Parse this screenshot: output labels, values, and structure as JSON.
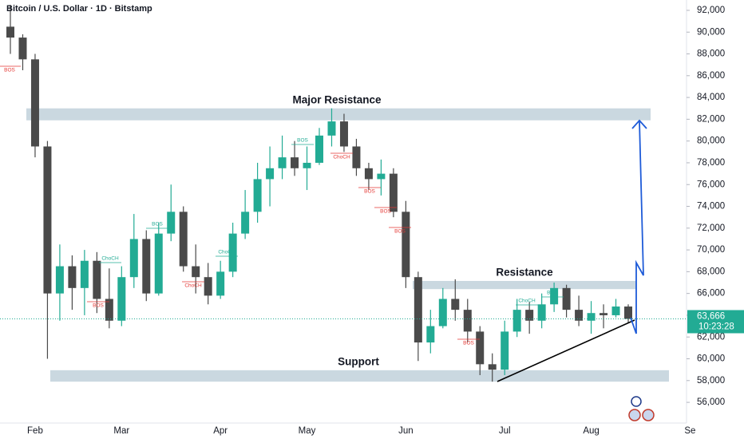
{
  "chart_data": {
    "type": "candlestick",
    "title": "Bitcoin / U.S. Dollar · 1D · Bitstamp",
    "categories": [
      null,
      null,
      "Feb",
      null,
      null,
      null,
      null,
      null,
      null,
      "Mar",
      null,
      null,
      null,
      null,
      null,
      null,
      null,
      "Apr",
      null,
      null,
      null,
      null,
      null,
      null,
      "May",
      null,
      null,
      null,
      null,
      null,
      null,
      null,
      "Jun",
      null,
      null,
      null,
      null,
      null,
      null,
      null,
      "Jul",
      null,
      null,
      null,
      null,
      null,
      null,
      "Aug",
      null,
      null,
      null,
      null,
      null,
      null,
      null,
      "Se"
    ],
    "open": [
      90500,
      89500,
      87500,
      79500,
      66000,
      68500,
      66500,
      69000,
      65500,
      63500,
      67500,
      71000,
      66000,
      71500,
      73500,
      68500,
      67500,
      65800,
      68000,
      71500,
      73500,
      76500,
      77500,
      78500,
      77500,
      78000,
      80500,
      81800,
      79500,
      77500,
      76500,
      77000,
      73500,
      67500,
      61500,
      63000,
      65500,
      64500,
      62500,
      59500,
      59000,
      62500,
      64500,
      63500,
      65000,
      66500,
      64500,
      63500,
      64200,
      64000,
      64800,
      null,
      null,
      null,
      null,
      null
    ],
    "high": [
      92500,
      89800,
      88000,
      80000,
      70500,
      69500,
      70000,
      69800,
      68300,
      68500,
      73300,
      71800,
      72500,
      76000,
      74000,
      70500,
      68800,
      69000,
      72500,
      75500,
      78000,
      79500,
      80500,
      80000,
      79500,
      81200,
      83000,
      82500,
      80200,
      78000,
      78300,
      77500,
      74500,
      68000,
      64500,
      66500,
      67300,
      65500,
      63000,
      60500,
      63500,
      65500,
      65200,
      66000,
      67000,
      66800,
      65800,
      65300,
      65000,
      65500,
      65000,
      null,
      null,
      null,
      null,
      null
    ],
    "low": [
      88000,
      86500,
      78500,
      60000,
      63500,
      64500,
      64000,
      64200,
      62800,
      63000,
      66500,
      65300,
      65800,
      70800,
      68000,
      66000,
      65000,
      65500,
      67500,
      71000,
      72500,
      74000,
      76500,
      76800,
      75500,
      77800,
      79500,
      79000,
      76800,
      75500,
      75000,
      73000,
      66500,
      59800,
      60500,
      62800,
      63500,
      61500,
      58500,
      57900,
      58500,
      62000,
      62300,
      62800,
      64300,
      63800,
      63000,
      62300,
      62800,
      63800,
      63300,
      null,
      null,
      null,
      null,
      null
    ],
    "close": [
      89500,
      87500,
      79500,
      66000,
      68500,
      66500,
      69000,
      65500,
      63500,
      67500,
      71000,
      66000,
      71500,
      73500,
      68500,
      67500,
      65800,
      68000,
      71500,
      73500,
      76500,
      77500,
      78500,
      77500,
      78000,
      80500,
      81800,
      79500,
      77500,
      76500,
      77000,
      73500,
      67500,
      61500,
      63000,
      65500,
      64500,
      62500,
      59500,
      59000,
      62500,
      64500,
      63500,
      65000,
      66500,
      64500,
      63500,
      64200,
      64000,
      64800,
      63666,
      null,
      null,
      null,
      null,
      null
    ],
    "up_color": "#22ab94",
    "down_color": "#4a4a4a",
    "ylim": [
      54100,
      92950
    ],
    "yticks": [
      {
        "value": 56000,
        "label": "56,000"
      },
      {
        "value": 58000,
        "label": "58,000"
      },
      {
        "value": 60000,
        "label": "60,000"
      },
      {
        "value": 62000,
        "label": "62,000"
      },
      {
        "value": 64000,
        "label": "64,000"
      },
      {
        "value": 66000,
        "label": "66,000"
      },
      {
        "value": 68000,
        "label": "68,000"
      },
      {
        "value": 70000,
        "label": "70,000"
      },
      {
        "value": 72000,
        "label": "72,000"
      },
      {
        "value": 74000,
        "label": "74,000"
      },
      {
        "value": 76000,
        "label": "76,000"
      },
      {
        "value": 78000,
        "label": "78,000"
      },
      {
        "value": 80000,
        "label": "80,000"
      },
      {
        "value": 82000,
        "label": "82,000"
      },
      {
        "value": 84000,
        "label": "84,000"
      },
      {
        "value": 86000,
        "label": "86,000"
      },
      {
        "value": 88000,
        "label": "88,000"
      },
      {
        "value": 90000,
        "label": "90,000"
      },
      {
        "value": 92000,
        "label": "92,000"
      }
    ],
    "last_price": {
      "value": 63666,
      "label": "63,666"
    },
    "countdown": "10:23:28",
    "zones": [
      {
        "label": "Major Resistance",
        "low": 81900,
        "high": 83000
      },
      {
        "label": "Resistance",
        "low": 66400,
        "high": 67150
      },
      {
        "label": "Support",
        "low": 57900,
        "high": 58950
      }
    ],
    "annotations": [
      "BOS",
      "ChoCH",
      "BOS",
      "BOS",
      "ChoCH",
      "ChoCH",
      "BOS",
      "ChoCH",
      "BOS",
      "BOS",
      "BOS",
      "BOS",
      "ChoCH",
      "BOS"
    ]
  }
}
